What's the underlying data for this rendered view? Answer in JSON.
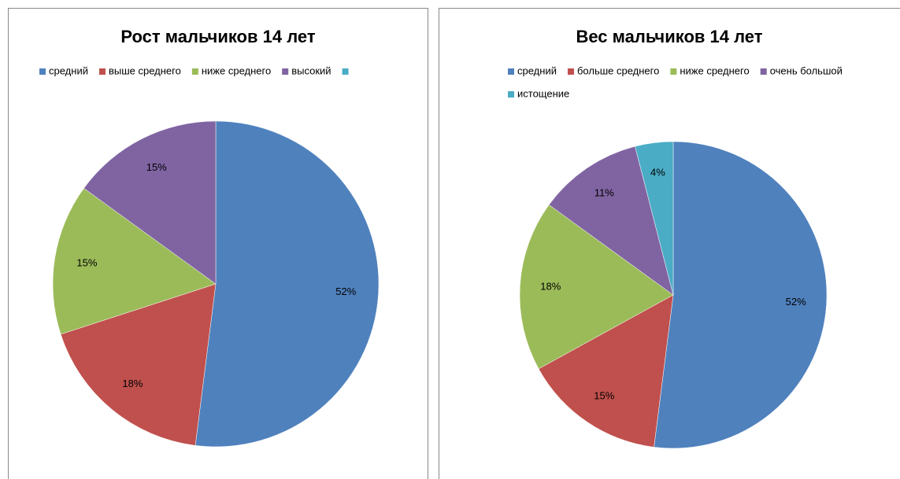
{
  "chart_data": [
    {
      "type": "pie",
      "title": "Рост   мальчиков 14  лет",
      "categories": [
        "средний",
        "выше среднего",
        "ниже среднего",
        "высокий",
        null
      ],
      "values": [
        52,
        18,
        15,
        15,
        0
      ],
      "value_labels": [
        "52%",
        "18%",
        "15%",
        "15%",
        null
      ],
      "colors": [
        "#4f81bd",
        "#c0504d",
        "#9bbb59",
        "#8064a2",
        "#4bacc6"
      ]
    },
    {
      "type": "pie",
      "title": "Вес  мальчиков 14  лет",
      "categories": [
        "средний",
        "больше среднего",
        "ниже среднего",
        "очень большой",
        "истощение"
      ],
      "values": [
        52,
        15,
        18,
        11,
        4
      ],
      "value_labels": [
        "52%",
        "15%",
        "18%",
        "11%",
        "4%"
      ],
      "colors": [
        "#4f81bd",
        "#c0504d",
        "#9bbb59",
        "#8064a2",
        "#4bacc6"
      ]
    }
  ]
}
